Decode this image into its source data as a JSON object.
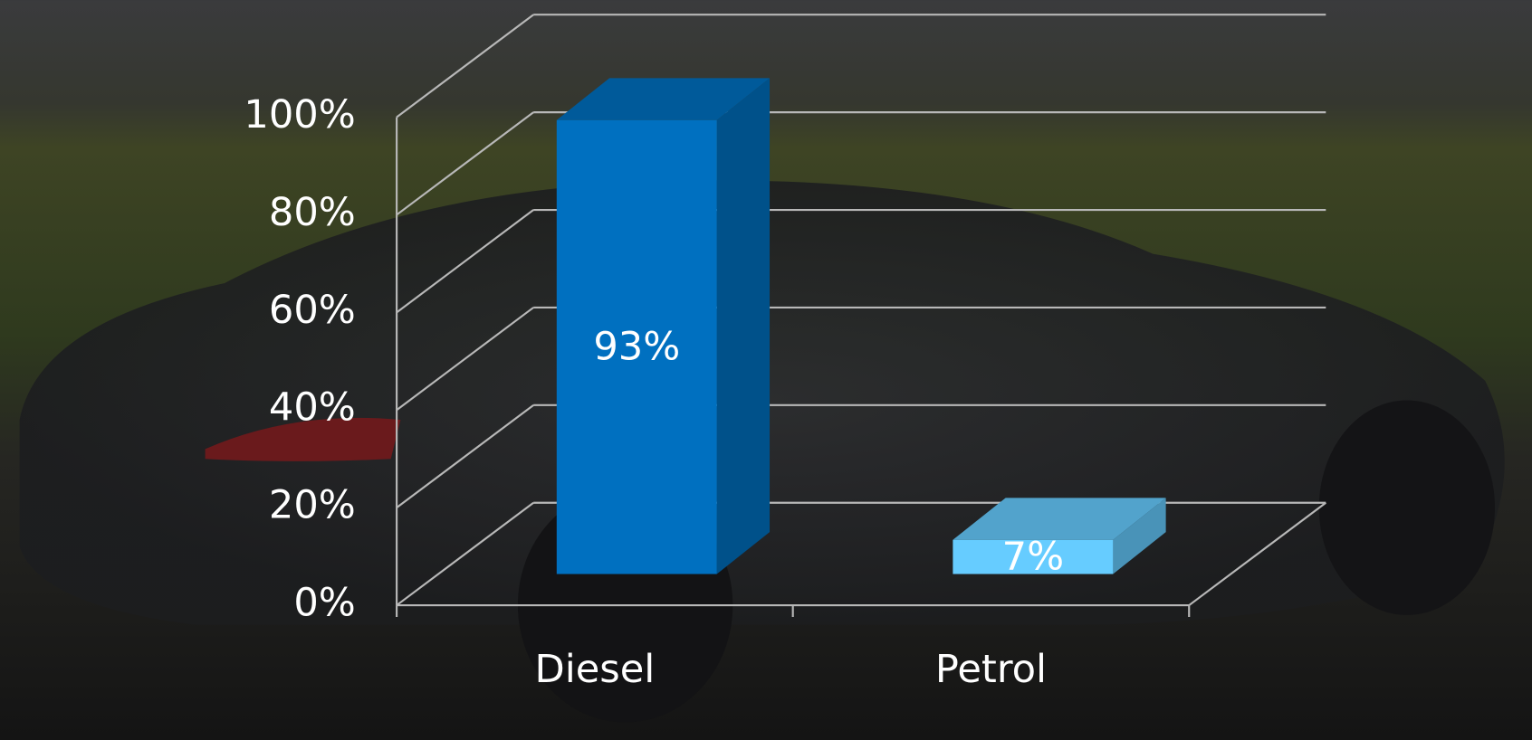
{
  "chart_data": {
    "type": "bar",
    "categories": [
      "Diesel",
      "Petrol"
    ],
    "values": [
      93,
      7
    ],
    "value_labels": [
      "93%",
      "7%"
    ],
    "colors": [
      "#0070c0",
      "#66ccff"
    ],
    "ylim": [
      0,
      100
    ],
    "yticks": [
      {
        "value": 0,
        "label": "0%"
      },
      {
        "value": 20,
        "label": "20%"
      },
      {
        "value": 40,
        "label": "40%"
      },
      {
        "value": 60,
        "label": "60%"
      },
      {
        "value": 80,
        "label": "80%"
      },
      {
        "value": 100,
        "label": "100%"
      }
    ],
    "grid": true
  }
}
